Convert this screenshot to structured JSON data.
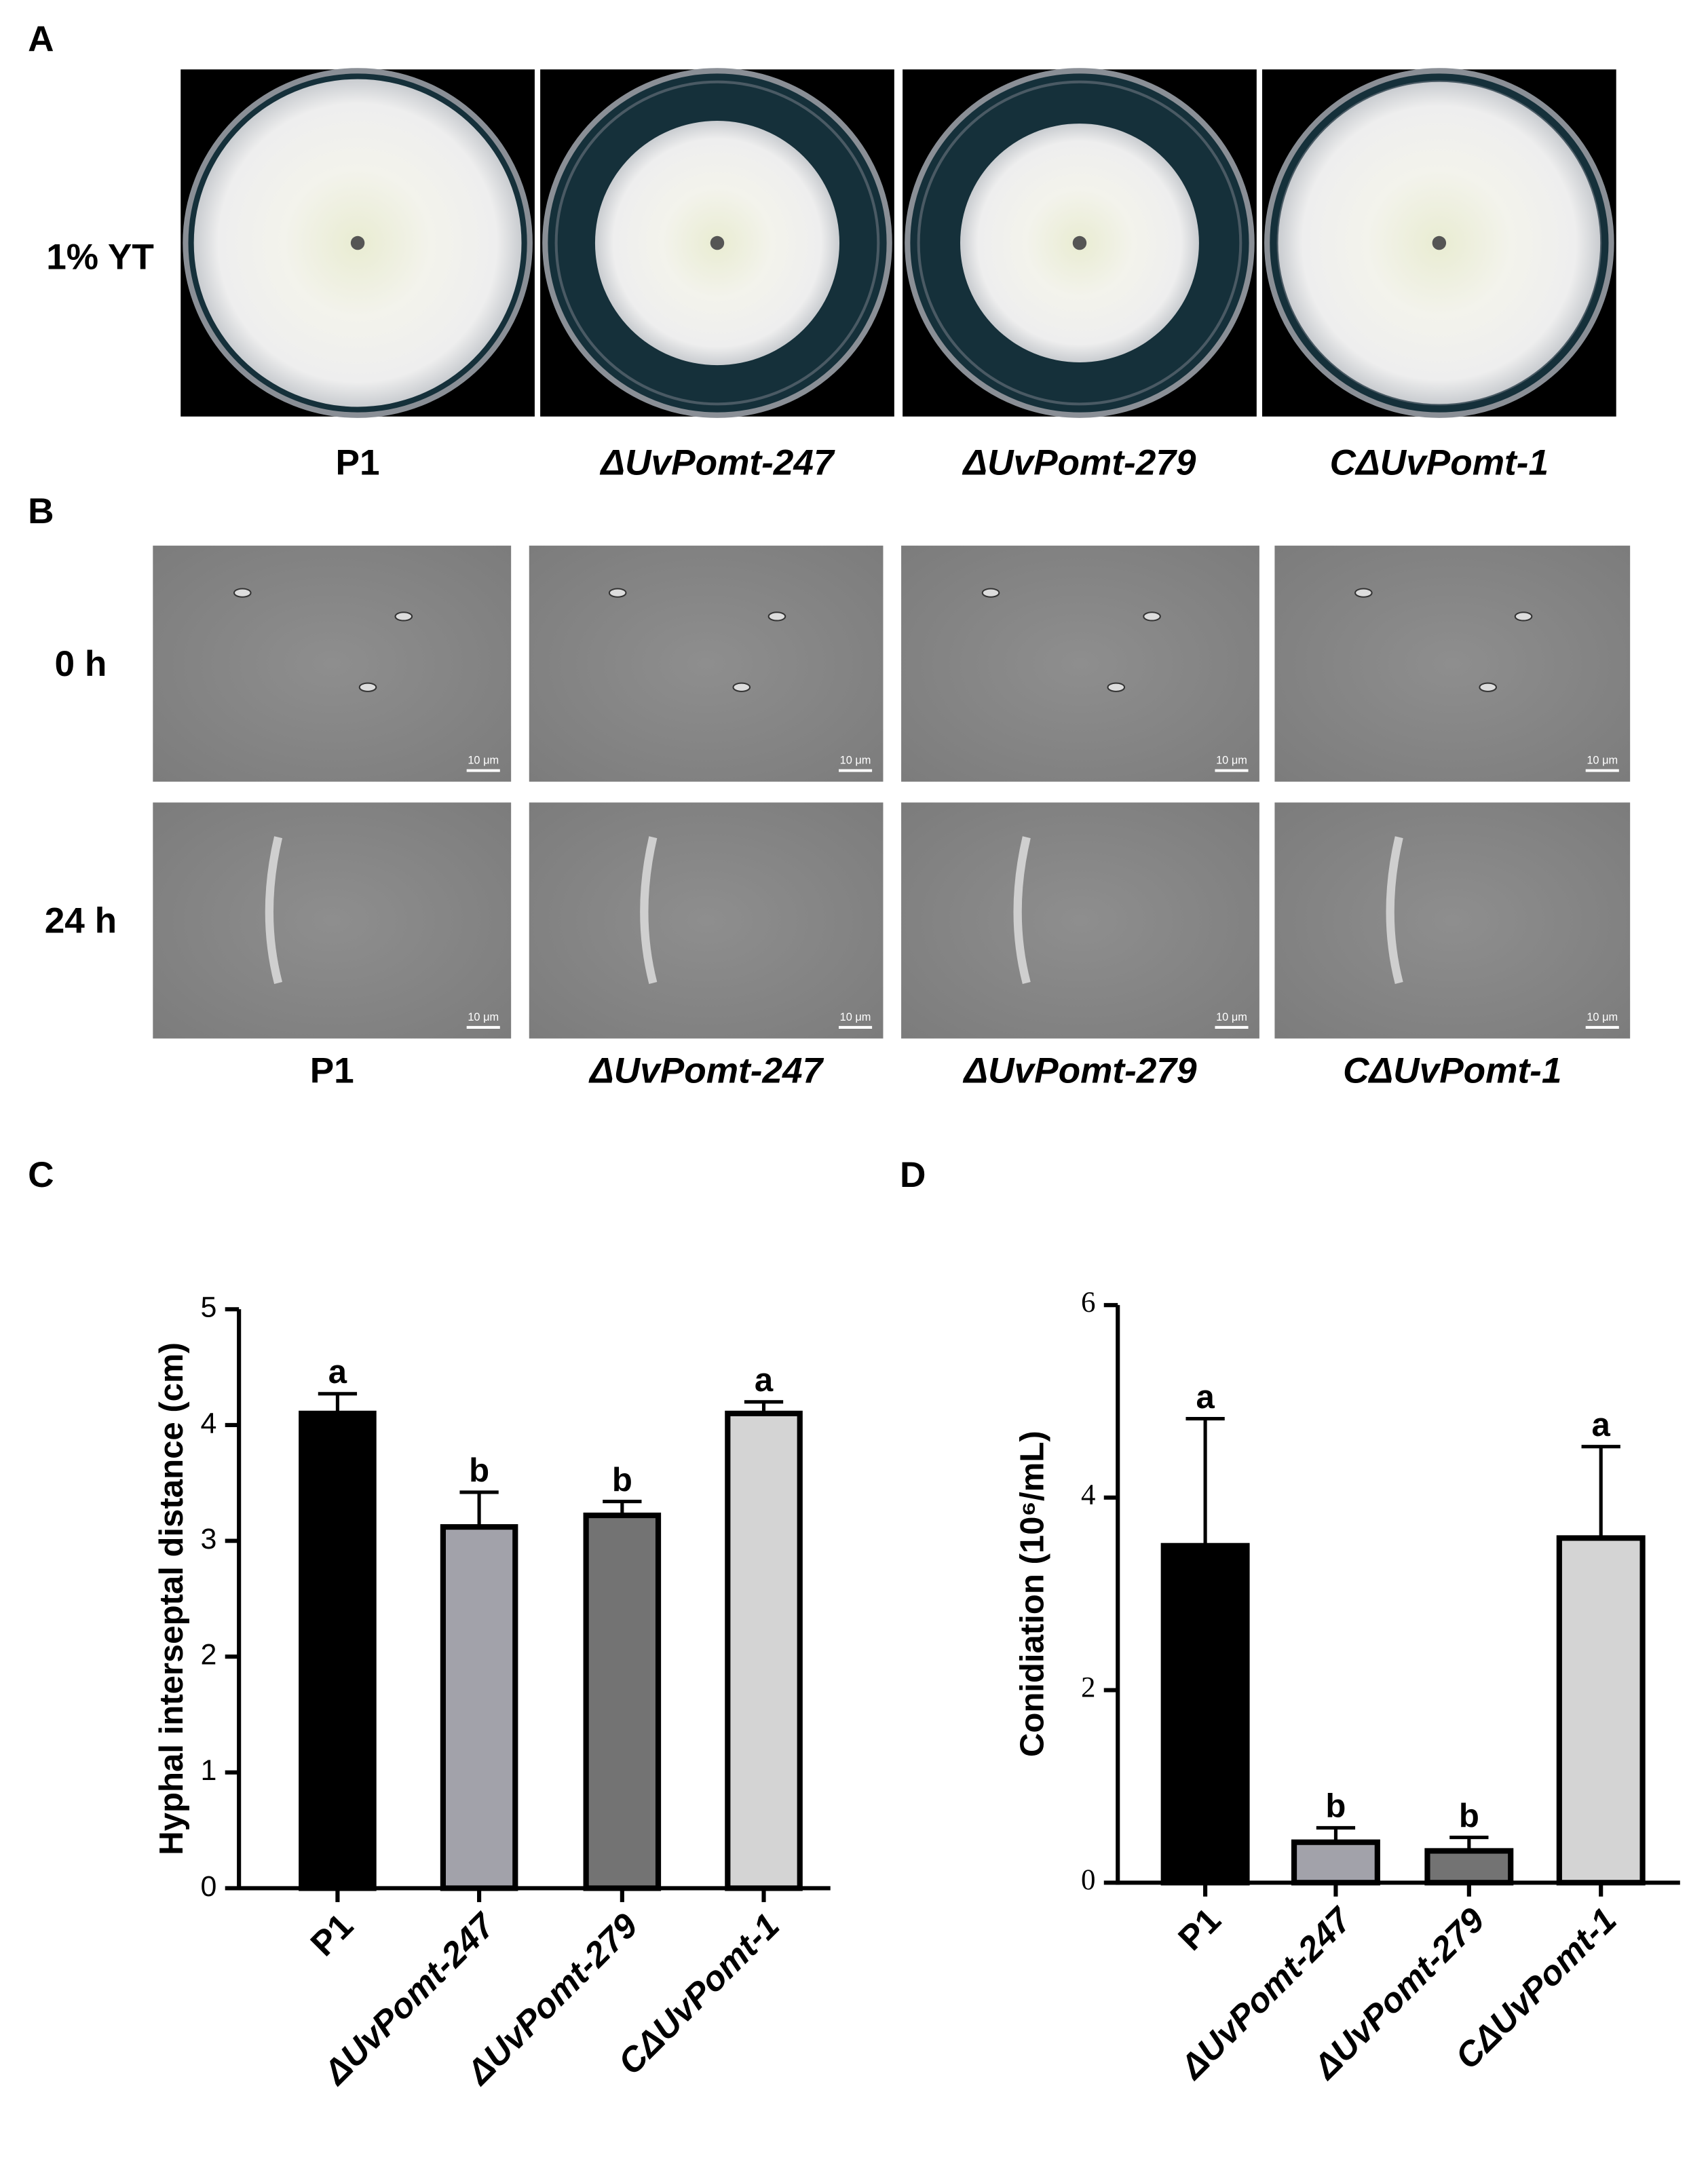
{
  "panels": {
    "A": {
      "label": "A",
      "row_label": "1% YT",
      "captions": [
        "P1",
        "ΔUvPomt-247",
        "ΔUvPomt-279",
        "CΔUvPomt-1"
      ]
    },
    "B": {
      "label": "B",
      "row_labels": [
        "0 h",
        "24 h"
      ],
      "captions": [
        "P1",
        "ΔUvPomt-247",
        "ΔUvPomt-279",
        "CΔUvPomt-1"
      ],
      "scale_bar": "10 μm"
    }
  },
  "chart_data": [
    {
      "type": "bar",
      "panel": "C",
      "ylabel": "Hyphal interseptal distance (cm)",
      "categories": [
        "P1",
        "ΔUvPomt-247",
        "ΔUvPomt-279",
        "CΔUvPomt-1"
      ],
      "values": [
        4.1,
        3.12,
        3.22,
        4.1
      ],
      "errors": [
        0.17,
        0.3,
        0.12,
        0.1
      ],
      "annotations": [
        "a",
        "b",
        "b",
        "a"
      ],
      "colors": [
        "#000000",
        "#a2a2aa",
        "#737373",
        "#d4d4d4"
      ],
      "ylim": [
        0,
        5
      ],
      "yticks": [
        0,
        1,
        2,
        3,
        4,
        5
      ]
    },
    {
      "type": "bar",
      "panel": "D",
      "ylabel": "Conidiation (10⁶/mL)",
      "categories": [
        "P1",
        "ΔUvPomt-247",
        "ΔUvPomt-279",
        "CΔUvPomt-1"
      ],
      "values": [
        3.5,
        0.42,
        0.33,
        3.58
      ],
      "errors": [
        1.32,
        0.15,
        0.14,
        0.95
      ],
      "annotations": [
        "a",
        "b",
        "b",
        "a"
      ],
      "colors": [
        "#000000",
        "#a2a2aa",
        "#737373",
        "#d4d4d4"
      ],
      "ylim": [
        0,
        6
      ],
      "yticks": [
        0,
        2,
        4,
        6
      ]
    }
  ]
}
